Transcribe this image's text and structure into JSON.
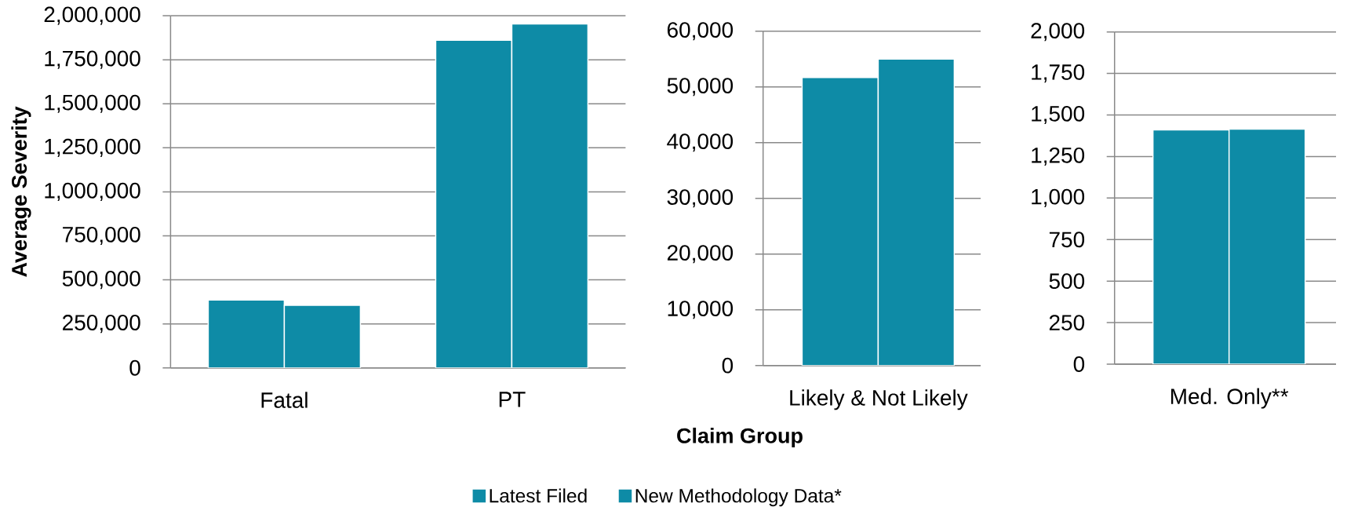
{
  "chart_data": [
    {
      "type": "bar",
      "ylabel": "Average Severity",
      "categories": [
        "Fatal",
        "PT"
      ],
      "series": [
        {
          "name": "Latest Filed",
          "color": "#0e8ba6",
          "values": [
            386000,
            1861000
          ]
        },
        {
          "name": "New Methodology Data*",
          "color": "#0e8ba6",
          "values": [
            356000,
            1954000
          ]
        }
      ],
      "ylim": [
        0,
        2000000
      ],
      "yticks": [
        0,
        {
          "value": 250000,
          "label": "250,000"
        },
        {
          "value": 500000,
          "label": "500,000"
        },
        {
          "value": 750000,
          "label": "750,000"
        },
        {
          "value": 1000000,
          "label": "1,000,000"
        },
        {
          "value": 1250000,
          "label": "1,250,000"
        },
        {
          "value": 1500000,
          "label": "1,500,000"
        },
        {
          "value": 1750000,
          "label": "1,750,000"
        },
        {
          "value": 2000000,
          "label": "2,000,000"
        }
      ],
      "grid": "y",
      "legend": "bottom"
    },
    {
      "type": "bar",
      "xlabel": "Claim Group",
      "categories": [
        "Likely & Not Likely"
      ],
      "series": [
        {
          "color": "#0e8ba6",
          "values": [
            51700
          ]
        },
        {
          "color": "#0e8ba6",
          "values": [
            55000
          ]
        }
      ],
      "ylim": [
        0,
        60000
      ],
      "yticks": [
        0,
        {
          "value": 10000,
          "label": "10,000"
        },
        {
          "value": 20000,
          "label": "20,000"
        },
        {
          "value": 30000,
          "label": "30,000"
        },
        {
          "value": 40000,
          "label": "40,000"
        },
        {
          "value": 50000,
          "label": "50,000"
        },
        {
          "value": 60000,
          "label": "60,000"
        }
      ],
      "grid": "y"
    },
    {
      "type": "bar",
      "categories": [
        "Med. Only**"
      ],
      "series": [
        {
          "color": "#0e8ba6",
          "values": [
            1410
          ]
        },
        {
          "color": "#0e8ba6",
          "values": [
            1415
          ]
        }
      ],
      "ylim": [
        0,
        2000
      ],
      "yticks": [
        0,
        250,
        500,
        750,
        {
          "value": 1000,
          "label": "1,000"
        },
        {
          "value": 1250,
          "label": "1,250"
        },
        {
          "value": 1500,
          "label": "1,500"
        },
        {
          "value": 1750,
          "label": "1,750"
        },
        {
          "value": 2000,
          "label": "2,000"
        }
      ],
      "grid": "y"
    }
  ]
}
